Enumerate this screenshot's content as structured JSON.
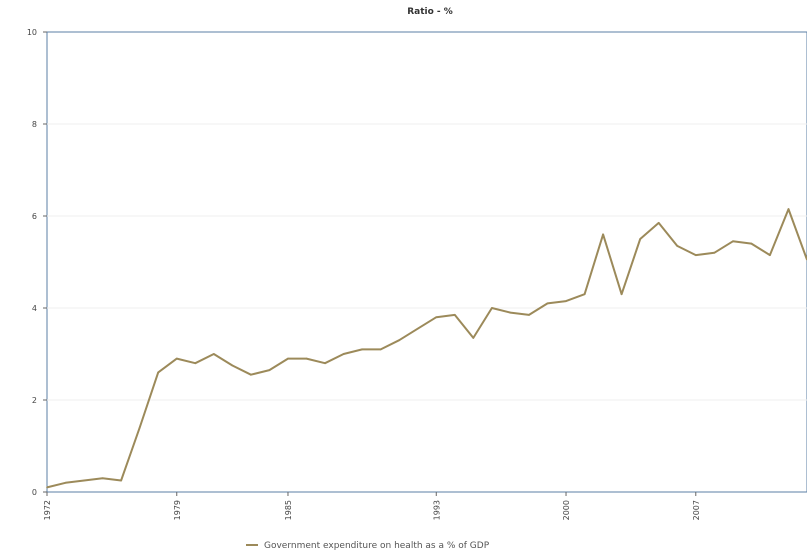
{
  "chart_data": {
    "type": "line",
    "title": "Ratio - %",
    "xlabel": "",
    "ylabel": "",
    "ylim": [
      0,
      10
    ],
    "yticks": [
      "0",
      "2",
      "4",
      "6",
      "8",
      "10"
    ],
    "xticks": [
      "1972",
      "1979",
      "1985",
      "1993",
      "2000",
      "2007"
    ],
    "xlim": [
      1972,
      2013
    ],
    "grid": "horizontal",
    "legend_position": "bottom",
    "series": [
      {
        "name": "Government expenditure on health as a % of GDP",
        "color": "#9c8a5a",
        "x": [
          1972,
          1973,
          1974,
          1975,
          1976,
          1977,
          1978,
          1979,
          1980,
          1981,
          1982,
          1983,
          1984,
          1985,
          1986,
          1987,
          1988,
          1989,
          1990,
          1991,
          1992,
          1993,
          1994,
          1995,
          1996,
          1997,
          1998,
          1999,
          2000,
          2001,
          2002,
          2003,
          2004,
          2005,
          2006,
          2007,
          2008,
          2009,
          2010,
          2011,
          2012,
          2013
        ],
        "values": [
          0.1,
          0.2,
          0.25,
          0.3,
          0.25,
          1.4,
          2.6,
          2.9,
          2.8,
          3.0,
          2.75,
          2.55,
          2.65,
          2.9,
          2.9,
          2.8,
          3.0,
          3.1,
          3.1,
          3.3,
          3.55,
          3.8,
          3.85,
          3.35,
          4.0,
          3.9,
          3.85,
          4.1,
          4.15,
          4.3,
          5.6,
          4.3,
          5.5,
          5.85,
          5.35,
          5.15,
          5.2,
          5.45,
          5.4,
          5.15,
          6.15,
          5.05
        ]
      }
    ]
  }
}
